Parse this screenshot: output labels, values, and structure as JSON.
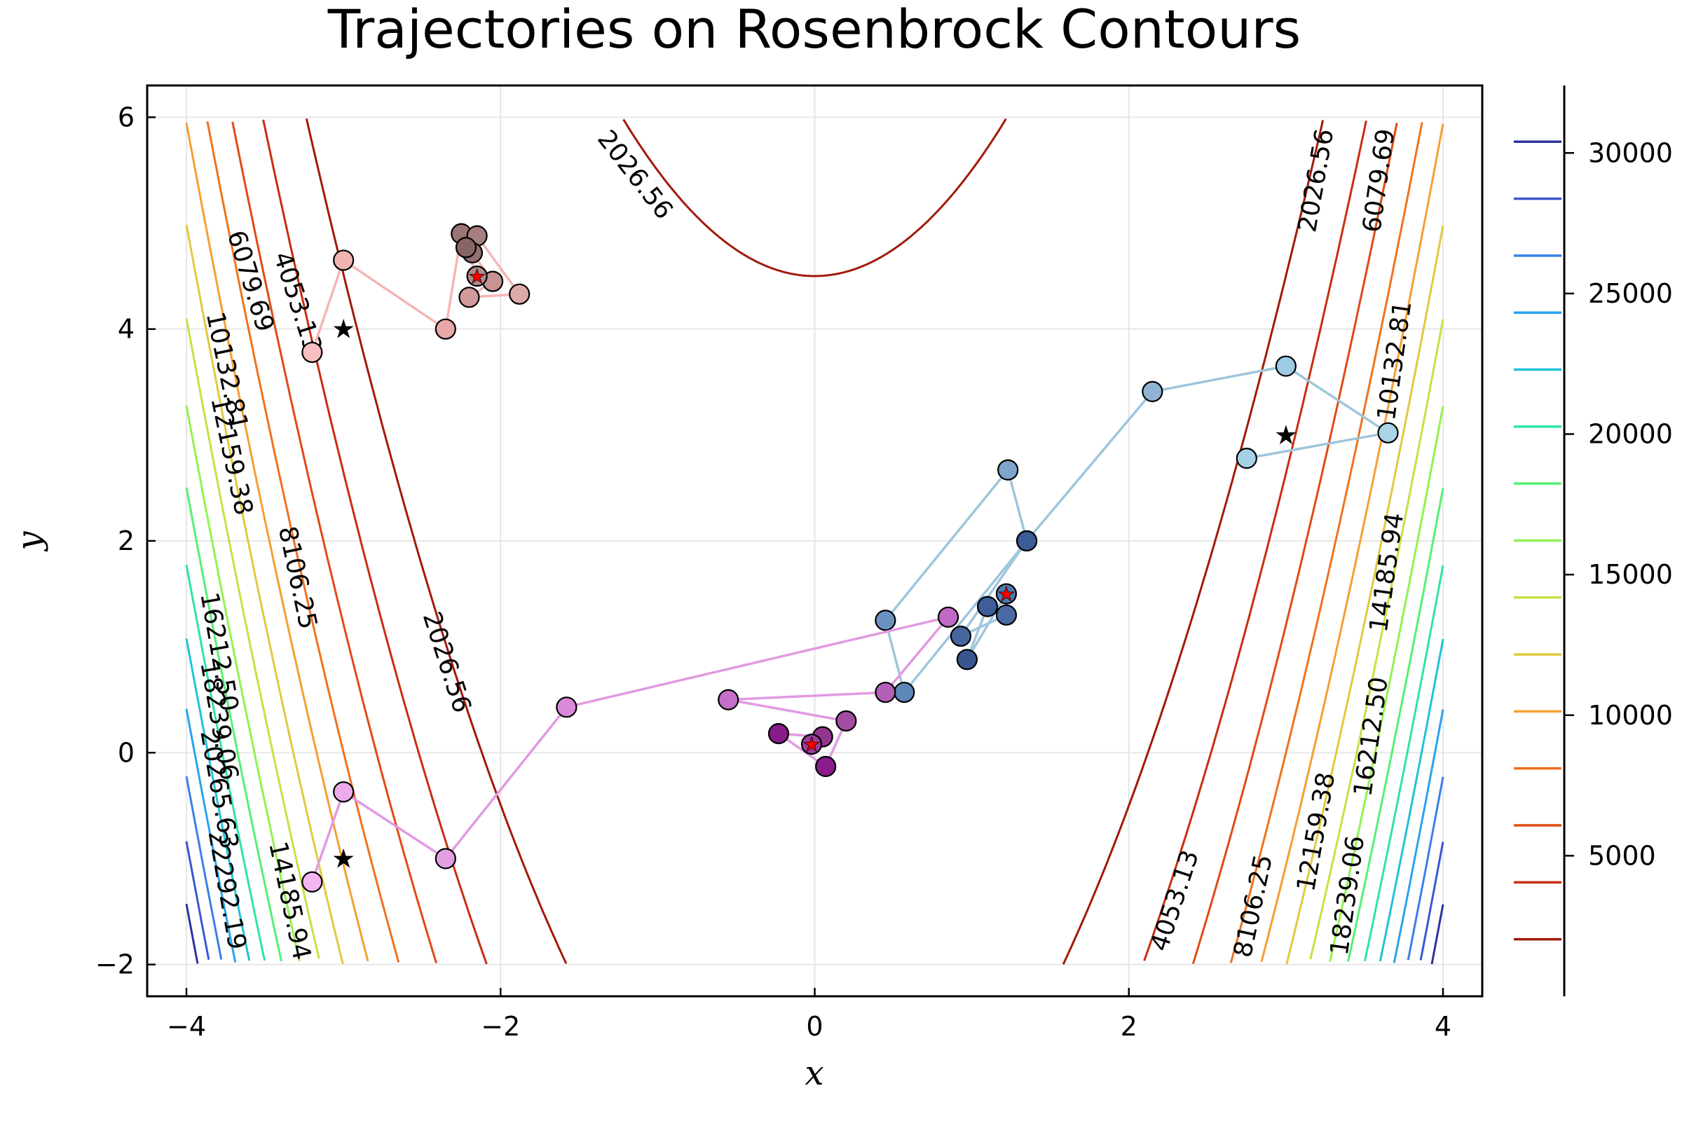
{
  "chart_data": {
    "type": "line",
    "title": "Trajectories on  Rosenbrock Contours",
    "xlabel": "x",
    "ylabel": "y",
    "xlim": [
      -4.25,
      4.25
    ],
    "ylim": [
      -2.3,
      6.3
    ],
    "x_ticks": [
      -4,
      -2,
      0,
      2,
      4
    ],
    "x_tick_labels": [
      "−4",
      "−2",
      "0",
      "2",
      "4"
    ],
    "y_ticks": [
      -2,
      0,
      2,
      4,
      6
    ],
    "y_tick_labels": [
      "−2",
      "0",
      "2",
      "4",
      "6"
    ],
    "grid": true,
    "contour_function": "rosenbrock",
    "contour_levels": [
      2026.56,
      4053.13,
      6079.69,
      8106.25,
      10132.81,
      12159.38,
      14185.94,
      16212.5,
      18239.06,
      20265.63,
      22292.19,
      24318.75,
      26345.31,
      28371.88,
      30398.44
    ],
    "contour_colors": [
      "#a11a0a",
      "#c82e10",
      "#e04b15",
      "#f1711f",
      "#f59f32",
      "#e3c83c",
      "#c3e33f",
      "#92f250",
      "#56f075",
      "#2fe3a5",
      "#1ec3d6",
      "#29a2ef",
      "#3a7fe8",
      "#3a57cf",
      "#2c339a"
    ],
    "inline_labels": [
      {
        "text": "2026.56",
        "x": -1.15,
        "y": 5.45,
        "angle": 52
      },
      {
        "text": "2026.56",
        "x": 3.2,
        "y": 5.4,
        "angle": -80
      },
      {
        "text": "6079.69",
        "x": -3.6,
        "y": 4.45,
        "angle": 73
      },
      {
        "text": "6079.69",
        "x": 3.6,
        "y": 5.4,
        "angle": -82
      },
      {
        "text": "4053.13",
        "x": -3.3,
        "y": 4.25,
        "angle": 72
      },
      {
        "text": "10132.81",
        "x": -3.75,
        "y": 3.6,
        "angle": 78
      },
      {
        "text": "10132.81",
        "x": 3.7,
        "y": 3.7,
        "angle": -82
      },
      {
        "text": "12159.38",
        "x": -3.72,
        "y": 2.8,
        "angle": 78
      },
      {
        "text": "8106.25",
        "x": -3.3,
        "y": 1.65,
        "angle": 78
      },
      {
        "text": "2026.56",
        "x": -2.35,
        "y": 0.85,
        "angle": 72
      },
      {
        "text": "14185.94",
        "x": 3.65,
        "y": 1.7,
        "angle": -82
      },
      {
        "text": "16212.50",
        "x": -3.8,
        "y": 0.95,
        "angle": 80
      },
      {
        "text": "18239.06",
        "x": -3.8,
        "y": 0.3,
        "angle": 80
      },
      {
        "text": "20265.63",
        "x": -3.8,
        "y": -0.35,
        "angle": 80
      },
      {
        "text": "22292.19",
        "x": -3.75,
        "y": -1.3,
        "angle": 80
      },
      {
        "text": "14185.94",
        "x": -3.35,
        "y": -1.4,
        "angle": 78
      },
      {
        "text": "16212.50",
        "x": 3.55,
        "y": 0.15,
        "angle": -82
      },
      {
        "text": "12159.38",
        "x": 3.2,
        "y": -0.75,
        "angle": -80
      },
      {
        "text": "18239.06",
        "x": 3.4,
        "y": -1.35,
        "angle": -82
      },
      {
        "text": "8106.25",
        "x": 2.8,
        "y": -1.45,
        "angle": -78
      },
      {
        "text": "4053.13",
        "x": 2.3,
        "y": -1.4,
        "angle": -72
      }
    ],
    "colorbar": {
      "ticks": [
        5000,
        10000,
        15000,
        20000,
        25000,
        30000
      ],
      "tick_labels": [
        "5000",
        "10000",
        "15000",
        "20000",
        "25000",
        "30000"
      ],
      "range": [
        0,
        32400
      ]
    },
    "series": [
      {
        "start": [
          -3,
          4
        ],
        "color": "#f4b6b6",
        "points": [
          [
            -3.2,
            3.78
          ],
          [
            -3.0,
            4.65
          ],
          [
            -2.35,
            4.0
          ],
          [
            -2.25,
            4.9
          ],
          [
            -2.15,
            4.88
          ],
          [
            -1.88,
            4.33
          ],
          [
            -2.2,
            4.3
          ],
          [
            -2.05,
            4.45
          ],
          [
            -2.18,
            4.72
          ],
          [
            -2.22,
            4.77
          ],
          [
            -2.15,
            4.5
          ]
        ],
        "point_colors": [
          "#f7bfbf",
          "#f2b3b3",
          "#e9a7a7",
          "#9c7575",
          "#a87f7f",
          "#ddaaaa",
          "#d09a9a",
          "#c79393",
          "#947070",
          "#876565",
          "#b08a8a"
        ]
      },
      {
        "start": [
          3,
          3
        ],
        "color": "#9fc6dc",
        "points": [
          [
            2.75,
            2.78
          ],
          [
            3.65,
            3.02
          ],
          [
            3.0,
            3.65
          ],
          [
            2.15,
            3.41
          ],
          [
            1.35,
            2.0
          ],
          [
            1.23,
            2.67
          ],
          [
            0.45,
            1.25
          ],
          [
            0.57,
            0.57
          ],
          [
            1.35,
            2.0
          ],
          [
            0.93,
            1.1
          ],
          [
            1.22,
            1.3
          ],
          [
            1.1,
            1.38
          ],
          [
            0.97,
            0.88
          ],
          [
            1.22,
            1.5
          ]
        ],
        "point_colors": [
          "#a6d0e4",
          "#acd4e8",
          "#9ccbe2",
          "#8fb3d1",
          "#4a6faa",
          "#7ea5cb",
          "#6c93c0",
          "#5c87b8",
          "#3c5c98",
          "#46669f",
          "#4b6aa5",
          "#3e5d99",
          "#3a5690",
          "#5077ad"
        ]
      },
      {
        "start": [
          -3,
          -1
        ],
        "color": "#e29ae2",
        "points": [
          [
            -3.2,
            -1.22
          ],
          [
            -3.0,
            -0.37
          ],
          [
            -2.35,
            -1.0
          ],
          [
            -1.58,
            0.43
          ],
          [
            0.85,
            1.28
          ],
          [
            0.45,
            0.57
          ],
          [
            -0.55,
            0.5
          ],
          [
            0.2,
            0.3
          ],
          [
            0.07,
            -0.13
          ],
          [
            -0.23,
            0.18
          ],
          [
            0.05,
            0.15
          ],
          [
            -0.02,
            0.08
          ]
        ],
        "point_colors": [
          "#f3b6f3",
          "#ecacec",
          "#e2a0e2",
          "#d88ad8",
          "#c16ac5",
          "#b460b8",
          "#c56fc8",
          "#a24ca4",
          "#8a1c8e",
          "#861b8a",
          "#93348f",
          "#9a3e9a"
        ]
      }
    ]
  }
}
